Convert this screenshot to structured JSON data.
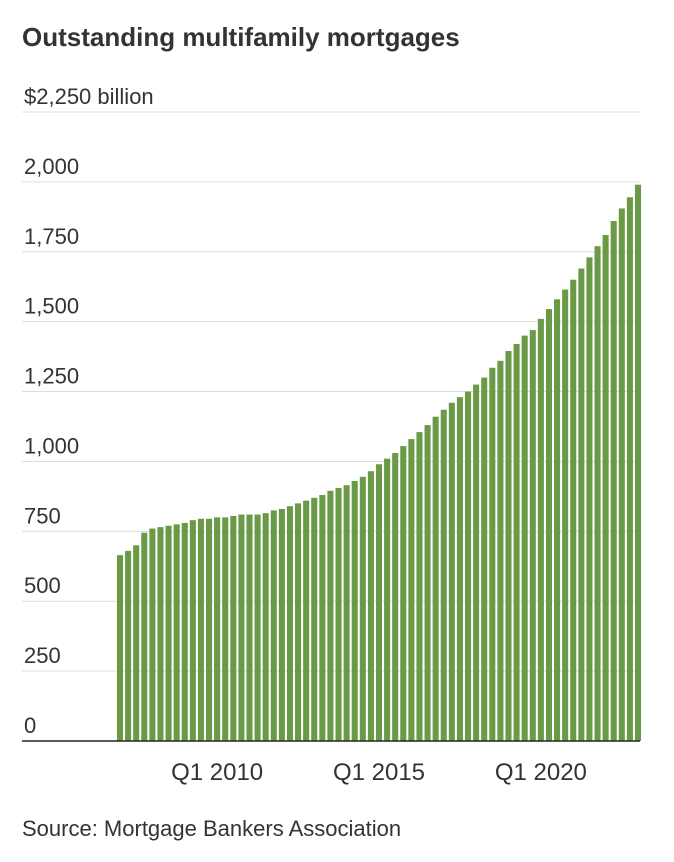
{
  "chart_data": {
    "type": "bar",
    "title": "Outstanding multifamily mortgages",
    "source": "Source: Mortgage Bankers Association",
    "categories": [
      null,
      null,
      null,
      null,
      null,
      null,
      null,
      null,
      null,
      null,
      null,
      null,
      "Q1 2010",
      null,
      null,
      null,
      null,
      null,
      null,
      null,
      null,
      null,
      null,
      null,
      null,
      null,
      null,
      null,
      null,
      null,
      null,
      null,
      "Q1 2015",
      null,
      null,
      null,
      null,
      null,
      null,
      null,
      null,
      null,
      null,
      null,
      null,
      null,
      null,
      null,
      null,
      null,
      null,
      null,
      "Q1 2020",
      null,
      null,
      null,
      null,
      null,
      null,
      null,
      null,
      null,
      null,
      null,
      null
    ],
    "values": [
      665,
      680,
      700,
      745,
      760,
      765,
      770,
      775,
      780,
      790,
      795,
      795,
      800,
      800,
      805,
      810,
      810,
      810,
      815,
      825,
      830,
      840,
      850,
      860,
      870,
      880,
      895,
      905,
      915,
      930,
      945,
      965,
      990,
      1010,
      1030,
      1055,
      1080,
      1105,
      1130,
      1160,
      1185,
      1210,
      1230,
      1250,
      1275,
      1300,
      1335,
      1360,
      1395,
      1420,
      1450,
      1470,
      1510,
      1545,
      1580,
      1615,
      1650,
      1690,
      1730,
      1770,
      1810,
      1860,
      1905,
      1945,
      1990
    ],
    "color": "#6a9a46",
    "ylim": [
      0,
      2250
    ],
    "yticks": [
      0,
      250,
      500,
      750,
      {
        "value": 1000,
        "label": "1,000"
      },
      {
        "value": 1250,
        "label": "1,250"
      },
      {
        "value": 1500,
        "label": "1,500"
      },
      {
        "value": 1750,
        "label": "1,750"
      },
      {
        "value": 2000,
        "label": "2,000"
      },
      {
        "value": 2250,
        "label": "$2,250 billion"
      }
    ],
    "grid": true
  }
}
